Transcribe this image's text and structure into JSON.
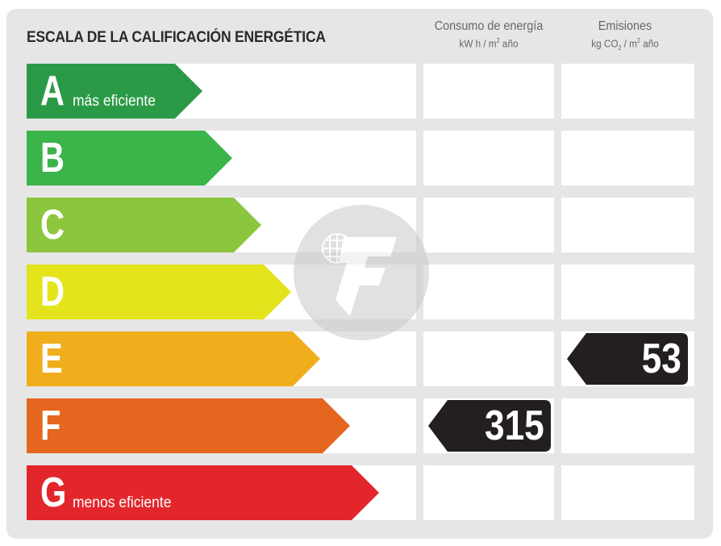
{
  "header": {
    "title": "ESCALA DE LA CALIFICACIÓN ENERGÉTICA",
    "col_energy": {
      "label": "Consumo de energía",
      "unit_pre": "kW h / m",
      "unit_sup": "2",
      "unit_post": " año"
    },
    "col_emissions": {
      "label": "Emisiones",
      "unit_pre": "kg CO",
      "unit_sub": "2",
      "unit_mid": " / m",
      "unit_sup": "2",
      "unit_post": " año"
    }
  },
  "rows": [
    {
      "letter": "A",
      "label": "más eficiente",
      "color": "#2b9a47"
    },
    {
      "letter": "B",
      "label": "",
      "color": "#3bb44a"
    },
    {
      "letter": "C",
      "label": "",
      "color": "#8cc63f"
    },
    {
      "letter": "D",
      "label": "",
      "color": "#e3e41b"
    },
    {
      "letter": "E",
      "label": "",
      "color": "#f0ae1d"
    },
    {
      "letter": "F",
      "label": "",
      "color": "#e5661f"
    },
    {
      "letter": "G",
      "label": "menos eficiente",
      "color": "#e3262b"
    }
  ],
  "ratings": {
    "energy": {
      "value": "315",
      "row_letter": "F"
    },
    "emissions": {
      "value": "53",
      "row_letter": "E"
    }
  },
  "marker_color": "#231f20"
}
